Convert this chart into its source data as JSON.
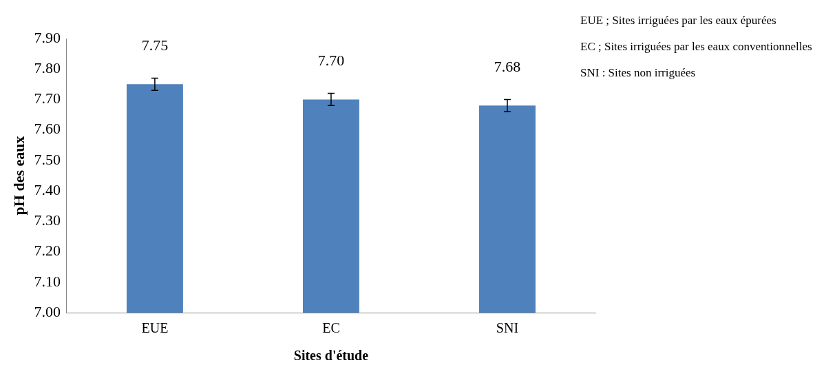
{
  "chart_data": {
    "type": "bar",
    "xlabel": "Sites d'étude",
    "ylabel": "pH des eaux",
    "categories": [
      "EUE",
      "EC",
      "SNI"
    ],
    "values": [
      7.75,
      7.7,
      7.68
    ],
    "value_labels": [
      "7.75",
      "7.70",
      "7.68"
    ],
    "errors": [
      0.02,
      0.02,
      0.02
    ],
    "color": "#4f81bd",
    "ylim": [
      7.0,
      7.9
    ],
    "yticks": [
      {
        "value": 7.0,
        "label": "7.00"
      },
      {
        "value": 7.1,
        "label": "7.10"
      },
      {
        "value": 7.2,
        "label": "7.20"
      },
      {
        "value": 7.3,
        "label": "7.30"
      },
      {
        "value": 7.4,
        "label": "7.40"
      },
      {
        "value": 7.5,
        "label": "7.50"
      },
      {
        "value": 7.6,
        "label": "7.60"
      },
      {
        "value": 7.7,
        "label": "7.70"
      },
      {
        "value": 7.8,
        "label": "7.80"
      },
      {
        "value": 7.9,
        "label": "7.90"
      }
    ],
    "grid": false,
    "legend": false,
    "annotations": [
      "EUE ; Sites irriguées par les eaux épurées",
      "EC ; Sites irriguées par les eaux conventionnelles",
      "SNI : Sites non irriguées"
    ]
  }
}
